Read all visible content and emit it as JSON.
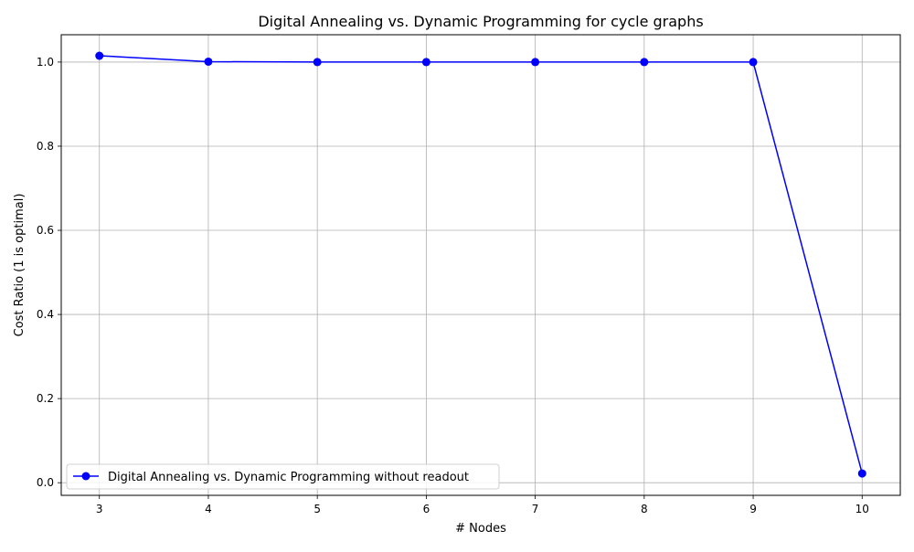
{
  "chart_data": {
    "type": "line",
    "title": "Digital Annealing vs. Dynamic Programming for cycle graphs",
    "xlabel": "# Nodes",
    "ylabel": "Cost Ratio (1 is optimal)",
    "x": [
      3,
      4,
      5,
      6,
      7,
      8,
      9,
      10
    ],
    "xticks": [
      "3",
      "4",
      "5",
      "6",
      "7",
      "8",
      "9",
      "10"
    ],
    "yticks": [
      "0.0",
      "0.2",
      "0.4",
      "0.6",
      "0.8",
      "1.0"
    ],
    "ytick_values": [
      0.0,
      0.2,
      0.4,
      0.6,
      0.8,
      1.0
    ],
    "xlim": [
      2.65,
      10.35
    ],
    "ylim": [
      -0.03,
      1.065
    ],
    "grid": true,
    "legend_position": "lower-left",
    "series": [
      {
        "name": "Digital Annealing vs. Dynamic Programming without readout",
        "color": "#0000ff",
        "marker": "circle",
        "values": [
          1.015,
          1.001,
          1.0,
          1.0,
          1.0,
          1.0,
          1.0,
          0.022
        ]
      }
    ]
  }
}
